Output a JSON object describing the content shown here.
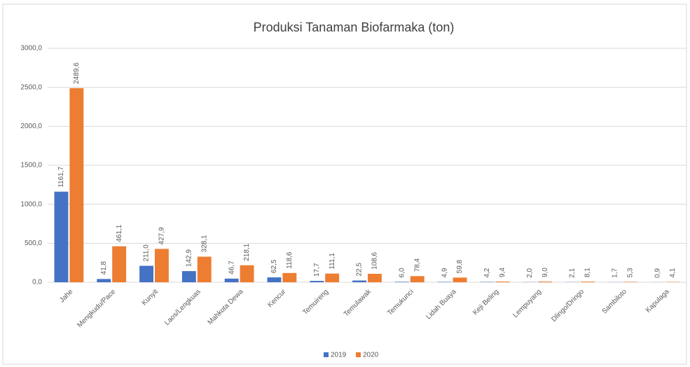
{
  "chart_data": {
    "type": "bar",
    "title": "Produksi Tanaman Biofarmaka (ton)",
    "categories": [
      "Jahe",
      "Mengkudu/Pace",
      "Kunyit",
      "Laos/Lengkuas",
      "Mahkota Dewa",
      "Kencur",
      "Temuireng",
      "Temulawak",
      "Temukunci",
      "Lidah Buaya",
      "Keji Beling",
      "Lempuyang",
      "Dlingo/Dringo",
      "Sambiloto",
      "Kapulaga"
    ],
    "series": [
      {
        "name": "2019",
        "color": "#4472c4",
        "values": [
          1161.7,
          41.8,
          211.0,
          142.9,
          46.7,
          62.5,
          17.7,
          22.5,
          6.0,
          4.9,
          4.2,
          2.0,
          2.1,
          1.7,
          0.9
        ],
        "value_labels": [
          "1161,7",
          "41,8",
          "211,0",
          "142,9",
          "46,7",
          "62,5",
          "17,7",
          "22,5",
          "6,0",
          "4,9",
          "4,2",
          "2,0",
          "2,1",
          "1,7",
          "0,9"
        ]
      },
      {
        "name": "2020",
        "color": "#ed7d31",
        "values": [
          2489.6,
          461.1,
          427.9,
          328.1,
          218.1,
          118.6,
          111.1,
          108.6,
          78.4,
          59.8,
          9.4,
          9.0,
          8.1,
          5.3,
          4.1
        ],
        "value_labels": [
          "2489,6",
          "461,1",
          "427,9",
          "328,1",
          "218,1",
          "118,6",
          "111,1",
          "108,6",
          "78,4",
          "59,8",
          "9,4",
          "9,0",
          "8,1",
          "5,3",
          "4,1"
        ]
      }
    ],
    "ylim": [
      0,
      3000
    ],
    "yticks": [
      {
        "value": 0,
        "label": "0,0"
      },
      {
        "value": 500,
        "label": "500,0"
      },
      {
        "value": 1000,
        "label": "1000,0"
      },
      {
        "value": 1500,
        "label": "1500,0"
      },
      {
        "value": 2000,
        "label": "2000,0"
      },
      {
        "value": 2500,
        "label": "2500,0"
      },
      {
        "value": 3000,
        "label": "3000,0"
      }
    ],
    "grid": true,
    "legend": "bottom"
  }
}
